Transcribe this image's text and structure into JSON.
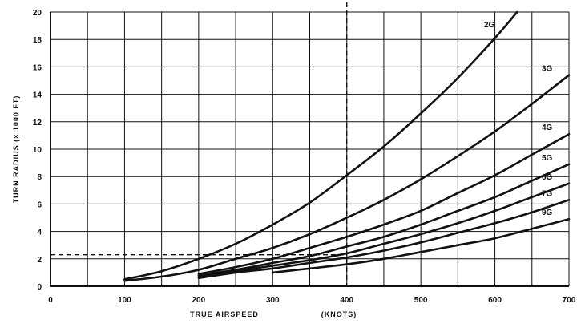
{
  "chart_data": {
    "type": "line",
    "xlabel": "TRUE AIRSPEED",
    "xlabel_units": "(KNOTS)",
    "ylabel": "TURN RADIUS (× 1000 FT)",
    "xlim": [
      0,
      700
    ],
    "ylim": [
      0,
      20
    ],
    "x_ticks": [
      0,
      100,
      200,
      300,
      400,
      500,
      600,
      700
    ],
    "y_ticks": [
      0,
      2,
      4,
      6,
      8,
      10,
      12,
      14,
      16,
      18,
      20
    ],
    "x_grid_step": 50,
    "y_grid_step": 2,
    "grid": true,
    "series": [
      {
        "name": "2G",
        "x": [
          100,
          150,
          200,
          250,
          300,
          350,
          400,
          450,
          500,
          550,
          600,
          630
        ],
        "y": [
          0.5,
          1.1,
          2.0,
          3.1,
          4.5,
          6.1,
          8.1,
          10.2,
          12.6,
          15.2,
          18.1,
          20.0
        ]
      },
      {
        "name": "3G",
        "x": [
          100,
          150,
          200,
          250,
          300,
          350,
          400,
          450,
          500,
          550,
          600,
          650,
          700
        ],
        "y": [
          0.4,
          0.7,
          1.2,
          2.0,
          2.8,
          3.8,
          5.0,
          6.3,
          7.8,
          9.5,
          11.3,
          13.3,
          15.4
        ]
      },
      {
        "name": "4G",
        "x": [
          200,
          250,
          300,
          350,
          400,
          450,
          500,
          550,
          600,
          650,
          700
        ],
        "y": [
          0.9,
          1.4,
          2.0,
          2.8,
          3.6,
          4.5,
          5.5,
          6.8,
          8.1,
          9.6,
          11.1
        ]
      },
      {
        "name": "5G",
        "x": [
          200,
          250,
          300,
          350,
          400,
          450,
          500,
          550,
          600,
          650,
          700
        ],
        "y": [
          0.8,
          1.2,
          1.7,
          2.2,
          2.9,
          3.6,
          4.5,
          5.5,
          6.5,
          7.7,
          8.9
        ]
      },
      {
        "name": "6G",
        "x": [
          200,
          250,
          300,
          350,
          400,
          450,
          500,
          550,
          600,
          650,
          700
        ],
        "y": [
          0.7,
          1.1,
          1.5,
          1.9,
          2.4,
          3.1,
          3.8,
          4.6,
          5.5,
          6.5,
          7.5
        ]
      },
      {
        "name": "7G",
        "x": [
          200,
          250,
          300,
          350,
          400,
          450,
          500,
          550,
          600,
          650,
          700
        ],
        "y": [
          0.6,
          1.0,
          1.3,
          1.7,
          2.1,
          2.6,
          3.2,
          3.9,
          4.6,
          5.4,
          6.3
        ]
      },
      {
        "name": "9G",
        "x": [
          300,
          350,
          400,
          450,
          500,
          550,
          600,
          650,
          700
        ],
        "y": [
          1.0,
          1.3,
          1.6,
          2.0,
          2.5,
          3.0,
          3.5,
          4.2,
          4.9
        ]
      }
    ],
    "reference_lines": {
      "vertical_x": 400,
      "horizontal_y": 2.3,
      "horizontal_to_x": 400
    }
  }
}
